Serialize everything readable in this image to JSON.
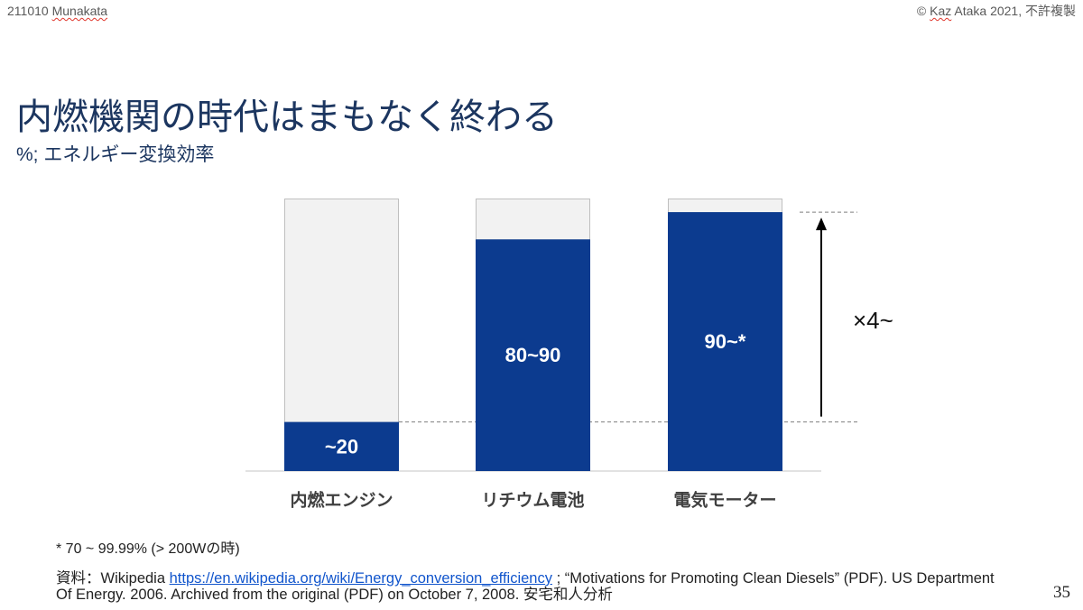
{
  "header": {
    "left_date": "211010",
    "left_name": "Munakata",
    "right_symbol": "©",
    "right_author": "Kaz",
    "right_rest": "Ataka 2021, 不許複製"
  },
  "chart_data": {
    "type": "bar",
    "stacked": true,
    "title": "内燃機関の時代はまもなく終わる",
    "subtitle": "%; エネルギー変換効率",
    "categories": [
      "内燃エンジン",
      "リチウム電池",
      "電気モーター"
    ],
    "series": [
      {
        "values": [
          18,
          85,
          95
        ],
        "color": "#0c3b8f",
        "data_labels": [
          "~20",
          "80~90",
          "90~*"
        ]
      },
      {
        "values": [
          82,
          15,
          5
        ],
        "color": "#f2f2f2"
      }
    ],
    "ylim": [
      0,
      100
    ],
    "grid": false,
    "legend": false,
    "annotation": "×4~"
  },
  "footnote": "* 70 ~ 99.99% (> 200Wの時)",
  "source": {
    "site": "資料：Wikipedia",
    "url": "https://en.wikipedia.org/wiki/Energy_conversion_efficiency",
    "line1_rest": "; “Motivations for Promoting Clean Diesels” (PDF). US Department",
    "line2": "Of Energy. 2006. Archived from the original (PDF) on October 7, 2008. 安宅和人分析"
  },
  "page_number": "35"
}
